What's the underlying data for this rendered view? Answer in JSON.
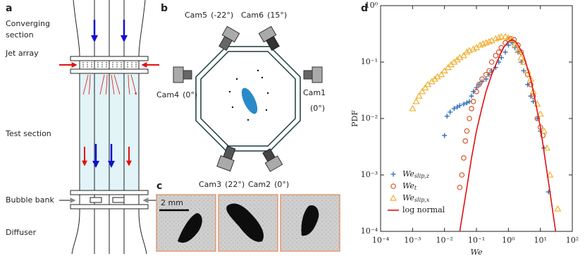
{
  "panels": {
    "a": {
      "label": "a",
      "converging_section": [
        "Converging",
        "section"
      ],
      "jet_array": "Jet array",
      "test_section": "Test section",
      "bubble_bank": "Bubble bank",
      "diffuser": "Diffuser"
    },
    "b": {
      "label": "b",
      "cameras": [
        {
          "name": "Cam5",
          "angle": "(-22°)"
        },
        {
          "name": "Cam6",
          "angle": "(15°)"
        },
        {
          "name": "Cam1",
          "angle": "(0°)"
        },
        {
          "name": "Cam2",
          "angle": "(0°)"
        },
        {
          "name": "Cam3",
          "angle": "(22°)"
        },
        {
          "name": "Cam4",
          "angle": "(0°)"
        }
      ]
    },
    "c": {
      "label": "c",
      "scale_bar": "2 mm"
    }
  },
  "chart_data": {
    "type": "scatter",
    "panel_label": "d",
    "xlabel": "We",
    "ylabel": "PDF",
    "xscale": "log",
    "yscale": "log",
    "xlim": [
      0.0001,
      100
    ],
    "ylim": [
      0.0001,
      1
    ],
    "xticks": [
      {
        "value": 0.0001,
        "label": "10⁻⁴"
      },
      {
        "value": 0.001,
        "label": "10⁻³"
      },
      {
        "value": 0.01,
        "label": "10⁻²"
      },
      {
        "value": 0.1,
        "label": "10⁻¹"
      },
      {
        "value": 1,
        "label": "10⁰"
      },
      {
        "value": 10,
        "label": "10¹"
      },
      {
        "value": 100,
        "label": "10²"
      }
    ],
    "yticks": [
      {
        "value": 0.0001,
        "label": "10⁻⁴"
      },
      {
        "value": 0.001,
        "label": "10⁻³"
      },
      {
        "value": 0.01,
        "label": "10⁻²"
      },
      {
        "value": 0.1,
        "label": "10⁻¹"
      },
      {
        "value": 1,
        "label": "10⁰"
      }
    ],
    "series": [
      {
        "name": "We",
        "name_subscript": "slip,z",
        "marker": "plus",
        "color": "#2a6db5",
        "x": [
          0.01,
          0.012,
          0.015,
          0.02,
          0.025,
          0.03,
          0.04,
          0.05,
          0.06,
          0.07,
          0.08,
          0.1,
          0.12,
          0.15,
          0.2,
          0.25,
          0.3,
          0.4,
          0.5,
          0.6,
          0.8,
          1.0,
          1.3,
          1.6,
          2,
          2.5,
          3,
          4,
          5,
          6,
          8,
          10,
          13,
          18
        ],
        "values": [
          0.005,
          0.011,
          0.013,
          0.015,
          0.016,
          0.017,
          0.018,
          0.019,
          0.02,
          0.025,
          0.03,
          0.035,
          0.04,
          0.045,
          0.05,
          0.06,
          0.07,
          0.08,
          0.1,
          0.12,
          0.15,
          0.2,
          0.22,
          0.18,
          0.15,
          0.1,
          0.07,
          0.04,
          0.025,
          0.02,
          0.01,
          0.006,
          0.003,
          0.0005
        ]
      },
      {
        "name": "We",
        "name_subscript": "t",
        "marker": "circle",
        "color": "#d4572a",
        "x": [
          0.03,
          0.035,
          0.04,
          0.045,
          0.05,
          0.06,
          0.07,
          0.08,
          0.1,
          0.12,
          0.15,
          0.2,
          0.25,
          0.3,
          0.4,
          0.5,
          0.6,
          0.8,
          1.0,
          1.2,
          1.5,
          2,
          2.5,
          3,
          4,
          5,
          6,
          8,
          10,
          12
        ],
        "values": [
          0.0006,
          0.001,
          0.002,
          0.004,
          0.006,
          0.01,
          0.015,
          0.02,
          0.03,
          0.04,
          0.05,
          0.06,
          0.07,
          0.1,
          0.13,
          0.15,
          0.18,
          0.22,
          0.25,
          0.26,
          0.25,
          0.2,
          0.15,
          0.1,
          0.06,
          0.04,
          0.025,
          0.01,
          0.007,
          0.005
        ]
      },
      {
        "name": "We",
        "name_subscript": "slip,x",
        "marker": "triangle",
        "color": "#f0b030",
        "x": [
          0.001,
          0.0013,
          0.0016,
          0.002,
          0.0025,
          0.003,
          0.004,
          0.005,
          0.006,
          0.008,
          0.01,
          0.013,
          0.016,
          0.02,
          0.025,
          0.03,
          0.04,
          0.05,
          0.06,
          0.08,
          0.1,
          0.13,
          0.16,
          0.2,
          0.25,
          0.3,
          0.4,
          0.5,
          0.6,
          0.8,
          1,
          1.3,
          1.6,
          2,
          2.5,
          3,
          4,
          5,
          6,
          8,
          10,
          13,
          16,
          20,
          35
        ],
        "values": [
          0.015,
          0.02,
          0.025,
          0.03,
          0.035,
          0.04,
          0.045,
          0.05,
          0.055,
          0.06,
          0.07,
          0.08,
          0.09,
          0.1,
          0.11,
          0.12,
          0.13,
          0.15,
          0.16,
          0.17,
          0.18,
          0.2,
          0.21,
          0.22,
          0.23,
          0.24,
          0.26,
          0.27,
          0.28,
          0.28,
          0.27,
          0.25,
          0.2,
          0.16,
          0.12,
          0.1,
          0.07,
          0.05,
          0.03,
          0.018,
          0.012,
          0.006,
          0.003,
          0.001,
          0.00025
        ]
      },
      {
        "name": "log normal",
        "marker": "line",
        "color": "#e01010",
        "x": [
          0.03,
          0.05,
          0.07,
          0.1,
          0.15,
          0.2,
          0.3,
          0.5,
          0.7,
          1,
          1.3,
          1.7,
          2,
          3,
          5,
          7,
          10,
          15,
          20,
          30
        ],
        "values": [
          0.0001,
          0.0006,
          0.002,
          0.006,
          0.016,
          0.03,
          0.06,
          0.12,
          0.18,
          0.23,
          0.25,
          0.23,
          0.2,
          0.13,
          0.05,
          0.02,
          0.007,
          0.0015,
          0.0005,
          0.0001
        ]
      }
    ]
  }
}
